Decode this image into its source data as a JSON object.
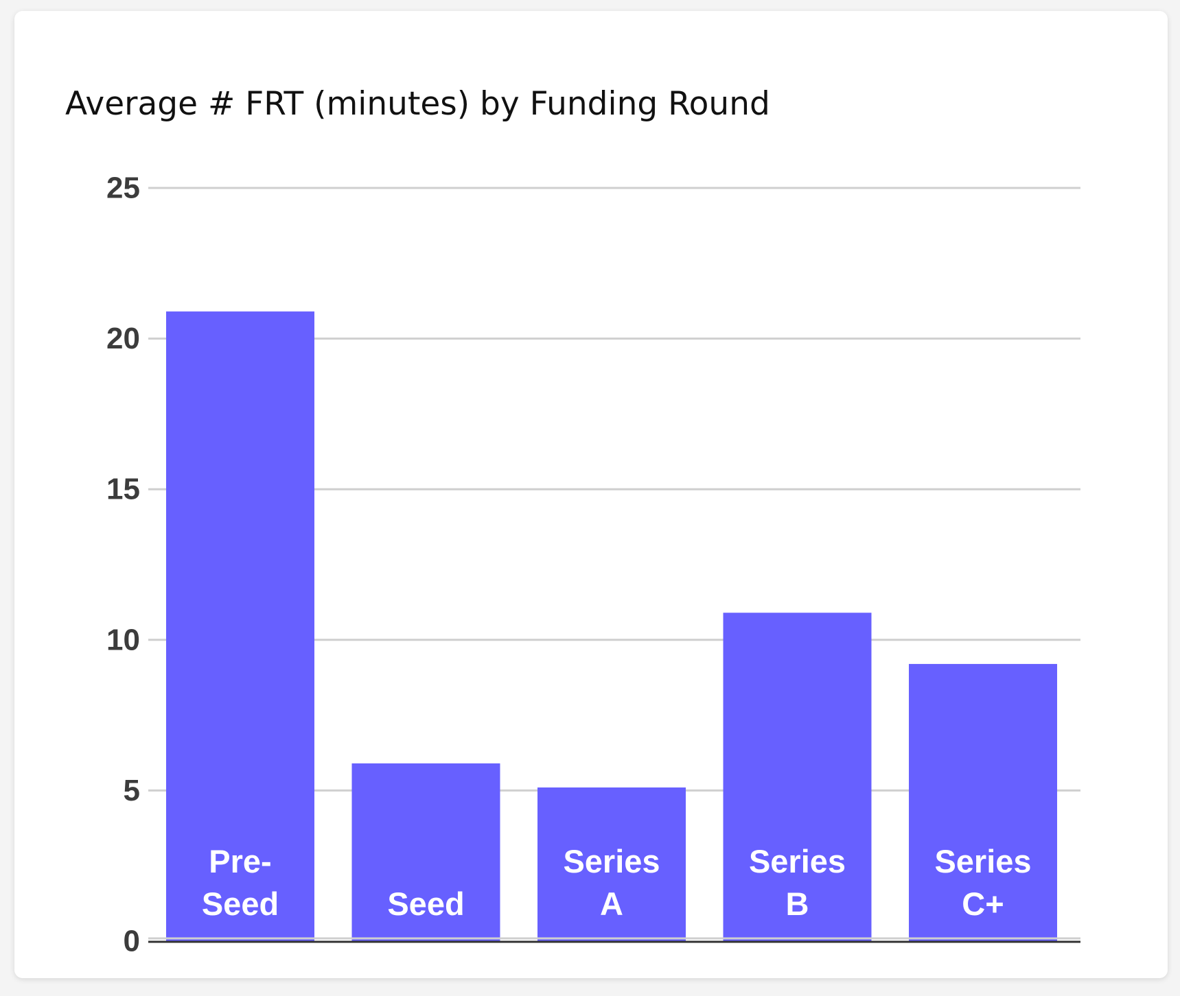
{
  "chart_data": {
    "type": "bar",
    "title": "Average # FRT (minutes) by Funding Round",
    "xlabel": "",
    "ylabel": "",
    "categories": [
      [
        "Pre-",
        "Seed"
      ],
      [
        "Seed"
      ],
      [
        "Series",
        "A"
      ],
      [
        "Series",
        "B"
      ],
      [
        "Series",
        "C+"
      ]
    ],
    "values": [
      20.9,
      5.9,
      5.1,
      10.9,
      9.2
    ],
    "ylim": [
      0,
      25
    ],
    "yticks": [
      0,
      5,
      10,
      15,
      20,
      25
    ],
    "grid": true,
    "legend": "none",
    "category_label_position": "inside-bar-bottom",
    "colors": {
      "bar": "#6760ff",
      "grid": "#cfcfcf",
      "axis": "#333333",
      "card": "#ffffff",
      "title": "#111111",
      "tick": "#3c3c3c",
      "bar_label": "#ffffff"
    }
  }
}
